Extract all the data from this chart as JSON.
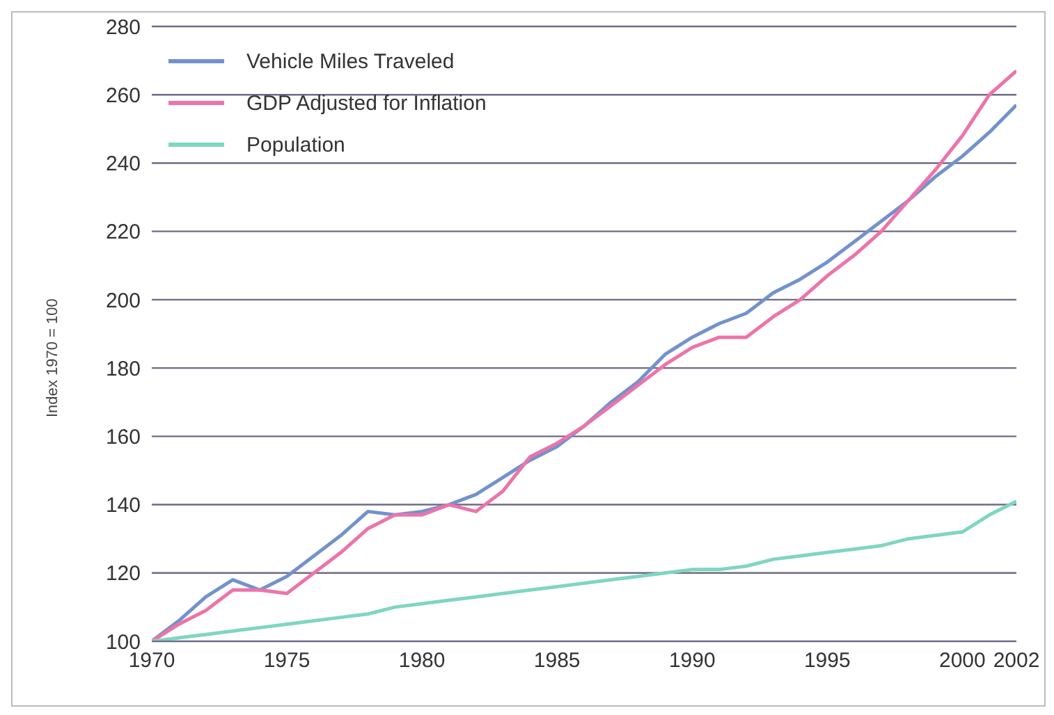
{
  "chart_data": {
    "type": "line",
    "ylabel": "Index 1970 = 100",
    "x": [
      1970,
      1971,
      1972,
      1973,
      1974,
      1975,
      1976,
      1977,
      1978,
      1979,
      1980,
      1981,
      1982,
      1983,
      1984,
      1985,
      1986,
      1987,
      1988,
      1989,
      1990,
      1991,
      1992,
      1993,
      1994,
      1995,
      1996,
      1997,
      1998,
      1999,
      2000,
      2001,
      2002
    ],
    "series": [
      {
        "name": "Vehicle Miles Traveled",
        "color": "#7392cc",
        "values": [
          100,
          106,
          113,
          118,
          115,
          119,
          125,
          131,
          138,
          137,
          138,
          140,
          143,
          148,
          153,
          157,
          163,
          170,
          176,
          184,
          189,
          193,
          196,
          202,
          206,
          211,
          217,
          223,
          229,
          236,
          242,
          249,
          257
        ]
      },
      {
        "name": "GDP Adjusted for Inflation",
        "color": "#ec74a9",
        "values": [
          100,
          105,
          109,
          115,
          115,
          114,
          120,
          126,
          133,
          137,
          137,
          140,
          138,
          144,
          154,
          158,
          163,
          169,
          175,
          181,
          186,
          189,
          189,
          195,
          200,
          207,
          213,
          220,
          229,
          238,
          248,
          260,
          267
        ]
      },
      {
        "name": "Population",
        "color": "#7fd6c0",
        "values": [
          100,
          101,
          102,
          103,
          104,
          105,
          106,
          107,
          108,
          110,
          111,
          112,
          113,
          114,
          115,
          116,
          117,
          118,
          119,
          120,
          121,
          121,
          122,
          124,
          125,
          126,
          127,
          128,
          130,
          131,
          132,
          137,
          141
        ]
      }
    ],
    "xlim": [
      1970,
      2002
    ],
    "xticks": [
      1970,
      1975,
      1980,
      1985,
      1990,
      1995,
      2000,
      2002
    ],
    "ylim": [
      100,
      280
    ],
    "yticks": [
      100,
      120,
      140,
      160,
      180,
      200,
      220,
      240,
      260,
      280
    ],
    "grid": "y",
    "legend": "top left",
    "marker": "none",
    "line_style": "solid"
  }
}
